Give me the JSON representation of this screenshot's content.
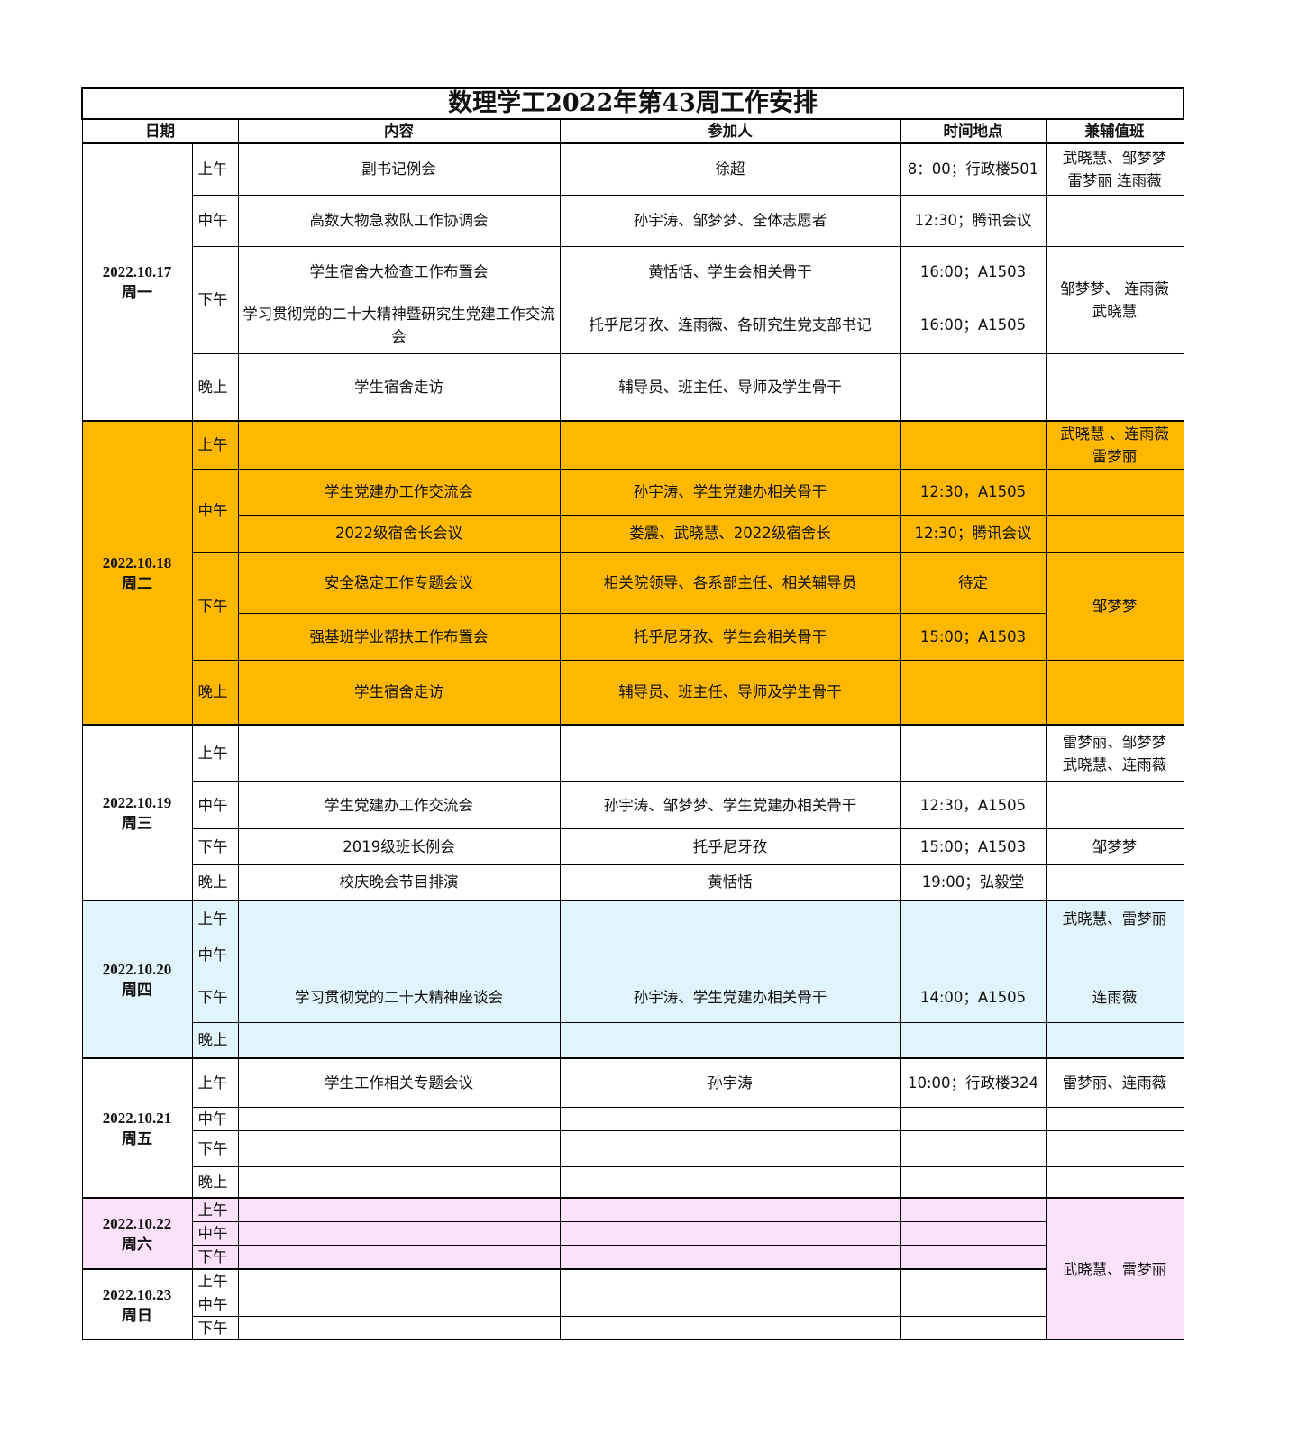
{
  "title": "数理学工2022年第43周工作安排",
  "headers": {
    "date": "日期",
    "content": "内容",
    "participants": "参加人",
    "time_place": "时间地点",
    "duty": "兼辅值班"
  },
  "colors": {
    "orange": "#FFB800",
    "blue": "#E1F3FB",
    "pink": "#FCE1FB",
    "white": "#FFFFFF"
  },
  "days": [
    {
      "date": "2022.10.17",
      "weekday": "周一",
      "color": "#FFFFFF"
    },
    {
      "date": "2022.10.18",
      "weekday": "周二",
      "color": "#FFB800"
    },
    {
      "date": "2022.10.19",
      "weekday": "周三",
      "color": "#FFFFFF"
    },
    {
      "date": "2022.10.20",
      "weekday": "周四",
      "color": "#E1F3FB"
    },
    {
      "date": "2022.10.21",
      "weekday": "周五",
      "color": "#FFFFFF"
    },
    {
      "date": "2022.10.22",
      "weekday": "周六",
      "color": "#FCE1FB"
    },
    {
      "date": "2022.10.23",
      "weekday": "周日",
      "color": "#FFFFFF"
    }
  ],
  "rows": [
    {
      "period": "上午",
      "content": "副书记例会",
      "participants": "徐超",
      "time_place": "8：00；行政楼501",
      "duty": "武晓慧、邹梦梦\n雷梦丽 连雨薇"
    },
    {
      "period": "中午",
      "content": "高数大物急救队工作协调会",
      "participants": "孙宇涛、邹梦梦、全体志愿者",
      "time_place": "12:30；腾讯会议",
      "duty": ""
    },
    {
      "period": "下午",
      "content": "学生宿舍大检查工作布置会",
      "participants": "黄恬恬、学生会相关骨干",
      "time_place": "16:00；A1503",
      "duty": "邹梦梦、 连雨薇\n武晓慧"
    },
    {
      "period": "下午",
      "content": "学习贯彻党的二十大精神暨研究生党建工作交流会",
      "participants": "托乎尼牙孜、连雨薇、各研究生党支部书记",
      "time_place": "16:00；A1505",
      "duty": ""
    },
    {
      "period": "晚上",
      "content": "学生宿舍走访",
      "participants": "辅导员、班主任、导师及学生骨干",
      "time_place": "",
      "duty": ""
    },
    {
      "period": "上午",
      "content": "",
      "participants": "",
      "time_place": "",
      "duty": "武晓慧 、连雨薇\n雷梦丽"
    },
    {
      "period": "中午",
      "content": "学生党建办工作交流会",
      "participants": "孙宇涛、学生党建办相关骨干",
      "time_place": "12:30，A1505",
      "duty": ""
    },
    {
      "period": "中午",
      "content": "2022级宿舍长会议",
      "participants": "娄震、武晓慧、2022级宿舍长",
      "time_place": "12:30；腾讯会议",
      "duty": ""
    },
    {
      "period": "下午",
      "content": "安全稳定工作专题会议",
      "participants": "相关院领导、各系部主任、相关辅导员",
      "time_place": "待定",
      "duty": "邹梦梦"
    },
    {
      "period": "下午",
      "content": "强基班学业帮扶工作布置会",
      "participants": "托乎尼牙孜、学生会相关骨干",
      "time_place": "15:00；A1503",
      "duty": ""
    },
    {
      "period": "晚上",
      "content": "学生宿舍走访",
      "participants": "辅导员、班主任、导师及学生骨干",
      "time_place": "",
      "duty": ""
    },
    {
      "period": "上午",
      "content": "",
      "participants": "",
      "time_place": "",
      "duty": "雷梦丽、邹梦梦\n武晓慧、连雨薇"
    },
    {
      "period": "中午",
      "content": "学生党建办工作交流会",
      "participants": "孙宇涛、邹梦梦、学生党建办相关骨干",
      "time_place": "12:30，A1505",
      "duty": ""
    },
    {
      "period": "下午",
      "content": "2019级班长例会",
      "participants": "托乎尼牙孜",
      "time_place": "15:00；A1503",
      "duty": "邹梦梦"
    },
    {
      "period": "晚上",
      "content": "校庆晚会节目排演",
      "participants": "黄恬恬",
      "time_place": "19:00；弘毅堂",
      "duty": ""
    },
    {
      "period": "上午",
      "content": "",
      "participants": "",
      "time_place": "",
      "duty": "武晓慧、雷梦丽"
    },
    {
      "period": "中午",
      "content": "",
      "participants": "",
      "time_place": "",
      "duty": ""
    },
    {
      "period": "下午",
      "content": "学习贯彻党的二十大精神座谈会",
      "participants": "孙宇涛、学生党建办相关骨干",
      "time_place": "14:00；A1505",
      "duty": "连雨薇"
    },
    {
      "period": "晚上",
      "content": "",
      "participants": "",
      "time_place": "",
      "duty": ""
    },
    {
      "period": "上午",
      "content": "学生工作相关专题会议",
      "participants": "孙宇涛",
      "time_place": "10:00；行政楼324",
      "duty": "雷梦丽、连雨薇"
    },
    {
      "period": "中午",
      "content": "",
      "participants": "",
      "time_place": "",
      "duty": ""
    },
    {
      "period": "下午",
      "content": "",
      "participants": "",
      "time_place": "",
      "duty": ""
    },
    {
      "period": "晚上",
      "content": "",
      "participants": "",
      "time_place": "",
      "duty": ""
    },
    {
      "period": "上午",
      "content": "",
      "participants": "",
      "time_place": "",
      "duty": "武晓慧、雷梦丽"
    },
    {
      "period": "中午",
      "content": "",
      "participants": "",
      "time_place": "",
      "duty": ""
    },
    {
      "period": "下午",
      "content": "",
      "participants": "",
      "time_place": "",
      "duty": ""
    },
    {
      "period": "上午",
      "content": "",
      "participants": "",
      "time_place": "",
      "duty": ""
    },
    {
      "period": "中午",
      "content": "",
      "participants": "",
      "time_place": "",
      "duty": ""
    },
    {
      "period": "下午",
      "content": "",
      "participants": "",
      "time_place": "",
      "duty": ""
    }
  ]
}
